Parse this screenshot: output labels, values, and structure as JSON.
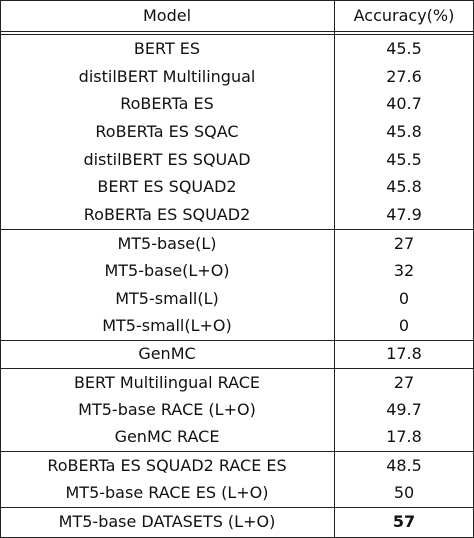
{
  "header": {
    "model": "Model",
    "accuracy": "Accuracy(%)"
  },
  "groups": [
    {
      "rows": [
        {
          "model": "BERT ES",
          "accuracy": "45.5"
        },
        {
          "model": "distilBERT Multilingual",
          "accuracy": "27.6"
        },
        {
          "model": "RoBERTa ES",
          "accuracy": "40.7"
        },
        {
          "model": "RoBERTa ES SQAC",
          "accuracy": "45.8"
        },
        {
          "model": "distilBERT ES SQUAD",
          "accuracy": "45.5"
        },
        {
          "model": "BERT ES SQUAD2",
          "accuracy": "45.8"
        },
        {
          "model": "RoBERTa ES SQUAD2",
          "accuracy": "47.9"
        }
      ]
    },
    {
      "rows": [
        {
          "model": "MT5-base(L)",
          "accuracy": "27"
        },
        {
          "model": "MT5-base(L+O)",
          "accuracy": "32"
        },
        {
          "model": "MT5-small(L)",
          "accuracy": "0"
        },
        {
          "model": "MT5-small(L+O)",
          "accuracy": "0"
        }
      ]
    },
    {
      "rows": [
        {
          "model": "GenMC",
          "accuracy": "17.8"
        }
      ]
    },
    {
      "rows": [
        {
          "model": "BERT Multilingual RACE",
          "accuracy": "27"
        },
        {
          "model": "MT5-base RACE (L+O)",
          "accuracy": "49.7"
        },
        {
          "model": "GenMC RACE",
          "accuracy": "17.8"
        }
      ]
    },
    {
      "rows": [
        {
          "model": "RoBERTa ES SQUAD2 RACE ES",
          "accuracy": "48.5"
        },
        {
          "model": "MT5-base RACE ES (L+O)",
          "accuracy": "50"
        }
      ]
    },
    {
      "rows": [
        {
          "model": "MT5-base DATASETS (L+O)",
          "accuracy": "57",
          "bold_accuracy": true
        }
      ]
    }
  ]
}
